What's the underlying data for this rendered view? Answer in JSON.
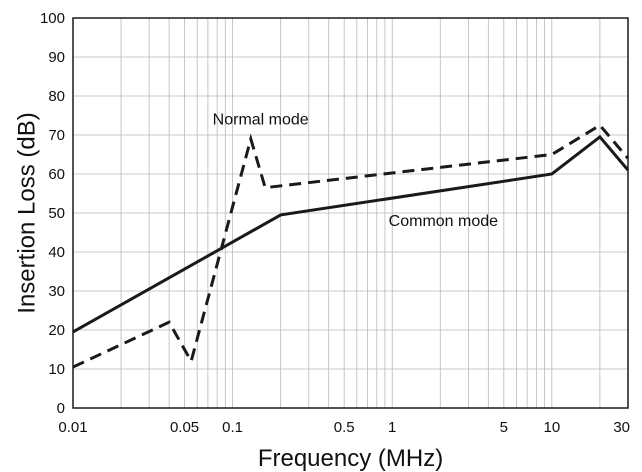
{
  "chart_data": {
    "type": "line",
    "xscale": "log",
    "xlim": [
      0.01,
      30
    ],
    "ylim": [
      0,
      100
    ],
    "xlabel": "Frequency (MHz)",
    "ylabel": "Insertion Loss (dB)",
    "x_ticks": [
      0.01,
      0.05,
      0.1,
      0.5,
      1,
      5,
      10,
      30
    ],
    "x_tick_labels": [
      "0.01",
      "0.05",
      "0.1",
      "0.5",
      "1",
      "5",
      "10",
      "30"
    ],
    "y_ticks": [
      0,
      10,
      20,
      30,
      40,
      50,
      60,
      70,
      80,
      90,
      100
    ],
    "y_tick_labels": [
      "0",
      "10",
      "20",
      "30",
      "40",
      "50",
      "60",
      "70",
      "80",
      "90",
      "100"
    ],
    "grid": true,
    "series": [
      {
        "name": "Normal mode",
        "style": "dashed",
        "color": "#1a1a1a",
        "x": [
          0.01,
          0.04,
          0.055,
          0.13,
          0.16,
          10,
          20,
          30
        ],
        "y": [
          10.5,
          22,
          12,
          69,
          56.5,
          65,
          72.5,
          64
        ]
      },
      {
        "name": "Common mode",
        "style": "solid",
        "color": "#1a1a1a",
        "x": [
          0.01,
          0.2,
          10,
          20,
          30
        ],
        "y": [
          19.5,
          49.5,
          60,
          69.5,
          61
        ]
      }
    ],
    "annotations": [
      {
        "text": "Normal mode",
        "x": 0.075,
        "y": 74
      },
      {
        "text": "Common mode",
        "x": 0.95,
        "y": 48
      }
    ]
  }
}
